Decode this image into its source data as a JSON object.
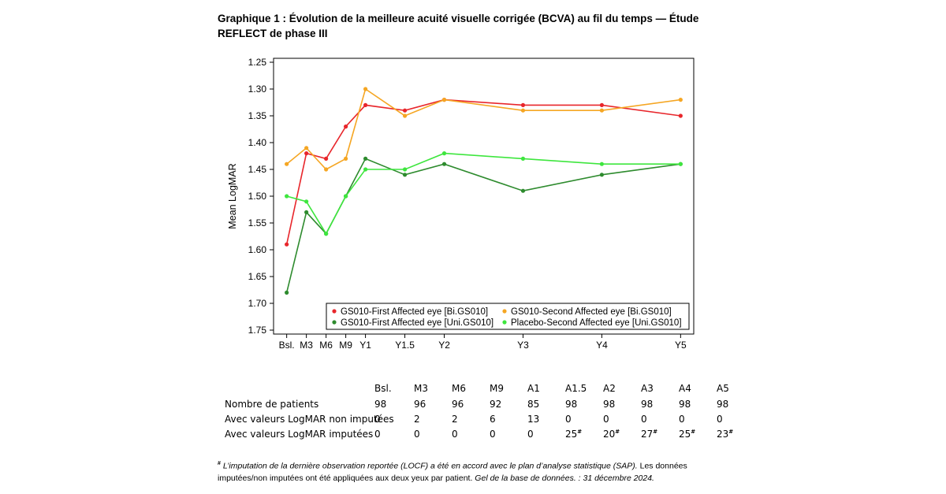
{
  "title": "Graphique 1 : Évolution de la meilleure acuité visuelle corrigée (BCVA) au fil du temps — Étude REFLECT de phase III",
  "chart_data": {
    "type": "line",
    "ylabel": "Mean LogMAR",
    "xlabel": "",
    "y_inverted": true,
    "ylim": [
      1.25,
      1.75
    ],
    "yticks": [
      "1.25",
      "1.30",
      "1.35",
      "1.40",
      "1.45",
      "1.50",
      "1.55",
      "1.60",
      "1.65",
      "1.70",
      "1.75"
    ],
    "xticks": [
      {
        "label": "Bsl.",
        "t": 0
      },
      {
        "label": "M3",
        "t": 3
      },
      {
        "label": "M6",
        "t": 6
      },
      {
        "label": "M9",
        "t": 9
      },
      {
        "label": "Y1",
        "t": 12
      },
      {
        "label": "Y1.5",
        "t": 18
      },
      {
        "label": "Y2",
        "t": 24
      },
      {
        "label": "Y3",
        "t": 36
      },
      {
        "label": "Y4",
        "t": 48
      },
      {
        "label": "Y5",
        "t": 60
      }
    ],
    "x_range": [
      -2,
      62
    ],
    "legend_position": "bottom-right",
    "series": [
      {
        "name": "GS010-First Affected eye [Bi.GS010]",
        "color": "#e8262b",
        "values": [
          1.59,
          1.42,
          1.43,
          1.37,
          1.33,
          1.34,
          1.32,
          1.33,
          1.33,
          1.35
        ]
      },
      {
        "name": "GS010-Second Affected eye [Bi.GS010]",
        "color": "#f5a623",
        "values": [
          1.44,
          1.41,
          1.45,
          1.43,
          1.3,
          1.35,
          1.32,
          1.34,
          1.34,
          1.32
        ]
      },
      {
        "name": "GS010-First Affected eye [Uni.GS010]",
        "color": "#2e8b2e",
        "values": [
          1.68,
          1.53,
          1.57,
          1.5,
          1.43,
          1.46,
          1.44,
          1.49,
          1.46,
          1.44
        ]
      },
      {
        "name": "Placebo-Second Affected eye [Uni.GS010]",
        "color": "#3ee63e",
        "values": [
          1.5,
          1.51,
          1.57,
          1.5,
          1.45,
          1.45,
          1.42,
          1.43,
          1.44,
          1.44
        ]
      }
    ]
  },
  "patients_table": {
    "columns": [
      "Bsl.",
      "M3",
      "M6",
      "M9",
      "A1",
      "A1.5",
      "A2",
      "A3",
      "A4",
      "A5"
    ],
    "rows": [
      {
        "label": "Nombre de patients",
        "values": [
          {
            "v": "98"
          },
          {
            "v": "96"
          },
          {
            "v": "96"
          },
          {
            "v": "92"
          },
          {
            "v": "85"
          },
          {
            "v": "98"
          },
          {
            "v": "98"
          },
          {
            "v": "98"
          },
          {
            "v": "98"
          },
          {
            "v": "98"
          }
        ]
      },
      {
        "label": "Avec valeurs LogMAR non imputées",
        "values": [
          {
            "v": "0"
          },
          {
            "v": "2"
          },
          {
            "v": "2"
          },
          {
            "v": "6"
          },
          {
            "v": "13"
          },
          {
            "v": "0"
          },
          {
            "v": "0"
          },
          {
            "v": "0"
          },
          {
            "v": "0"
          },
          {
            "v": "0"
          }
        ]
      },
      {
        "label": "Avec valeurs LogMAR imputées",
        "values": [
          {
            "v": "0"
          },
          {
            "v": "0"
          },
          {
            "v": "0"
          },
          {
            "v": "0"
          },
          {
            "v": "0"
          },
          {
            "v": "25",
            "mark": "#"
          },
          {
            "v": "20",
            "mark": "#"
          },
          {
            "v": "27",
            "mark": "#"
          },
          {
            "v": "25",
            "mark": "#"
          },
          {
            "v": "23",
            "mark": "#"
          }
        ]
      }
    ]
  },
  "footnote": {
    "mark": "#",
    "text_italic_1": " L’imputation de la dernière observation reportée (LOCF) a été en accord avec le plan d’analyse statistique (SAP).",
    "text_normal": " Les données imputées/non imputées ont été appliquées aux deux yeux par patient.",
    "text_italic_2": " Gel de la base de données. : 31 décembre 2024."
  }
}
